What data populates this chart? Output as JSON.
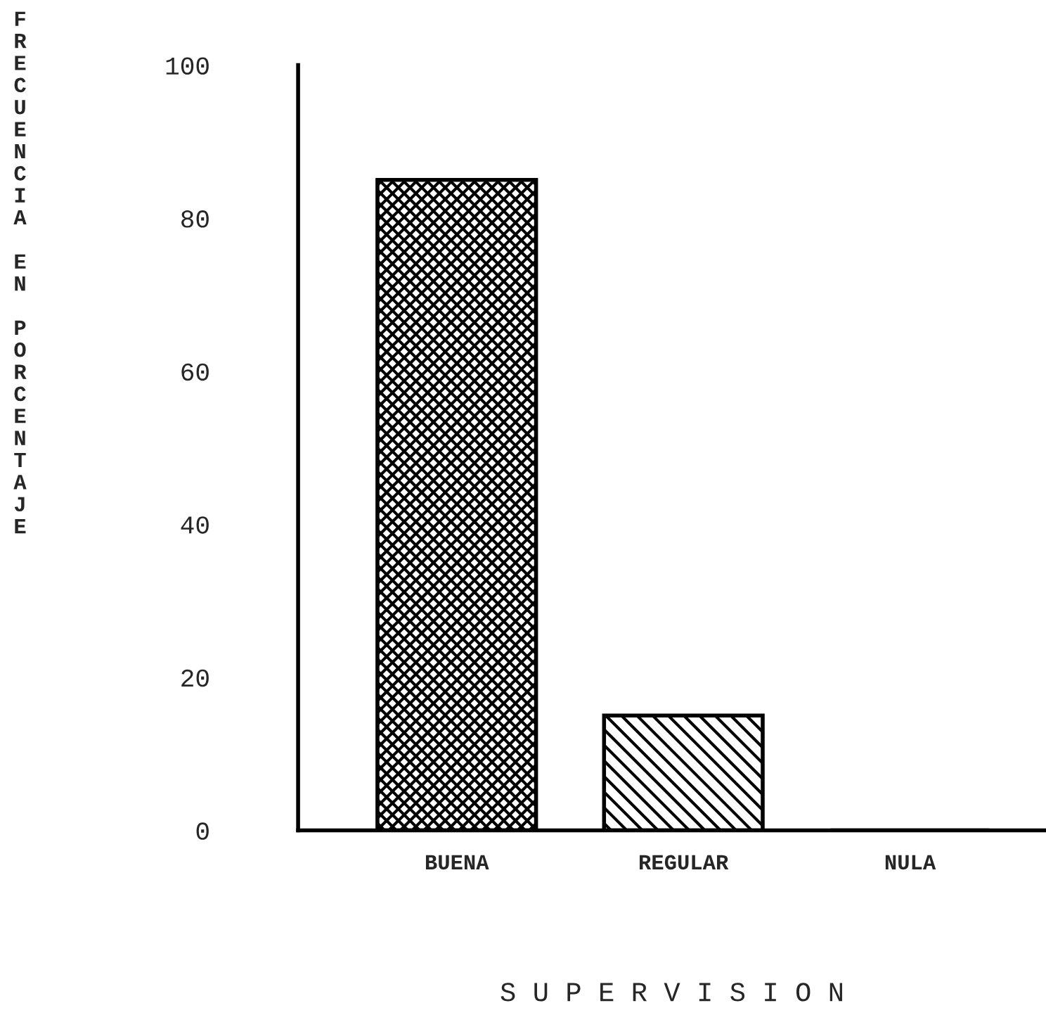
{
  "chart_data": {
    "type": "bar",
    "categories": [
      "BUENA",
      "REGULAR",
      "NULA"
    ],
    "values": [
      85,
      15,
      0
    ],
    "colors": [
      "#000000",
      "#000000",
      "#000000"
    ],
    "xlabel": "S U P E R V I S I O N",
    "ylabel": "FRECUENCIA EN PORCENTAJE",
    "ylim": [
      0,
      100
    ],
    "yticks": [
      0,
      20,
      40,
      60,
      80,
      100
    ],
    "grid": false,
    "legend": false
  }
}
